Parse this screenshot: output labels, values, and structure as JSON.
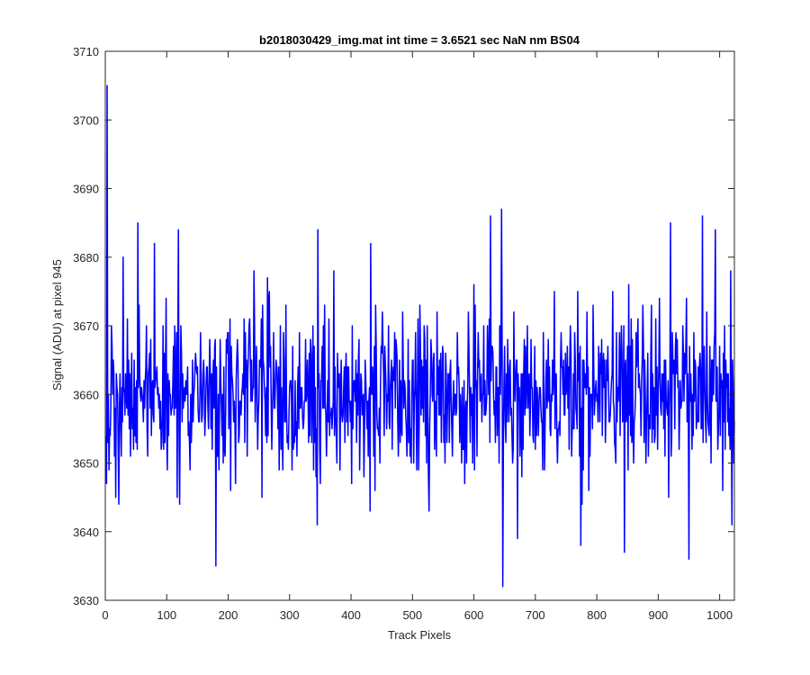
{
  "chart_data": {
    "type": "line",
    "title": "b2018030429_img.mat int time = 3.6521 sec  NaN nm BS04",
    "xlabel": "Track Pixels",
    "ylabel": "Signal (ADU) at pixel 945",
    "xlim": [
      0,
      1024
    ],
    "ylim": [
      3630,
      3710
    ],
    "xticks": [
      0,
      100,
      200,
      300,
      400,
      500,
      600,
      700,
      800,
      900,
      1000
    ],
    "yticks": [
      3630,
      3640,
      3650,
      3660,
      3670,
      3680,
      3690,
      3700,
      3710
    ],
    "grid": false,
    "legend": "none",
    "series": [
      {
        "color": "#0000ff",
        "x_start": 1,
        "x_step": 1,
        "count": 1024,
        "mean_level": 3660,
        "spread": 6,
        "notable_points": [
          {
            "x": 3,
            "y": 3705
          },
          {
            "x": 6,
            "y": 3649
          },
          {
            "x": 10,
            "y": 3670
          },
          {
            "x": 17,
            "y": 3645
          },
          {
            "x": 22,
            "y": 3644
          },
          {
            "x": 29,
            "y": 3680
          },
          {
            "x": 53,
            "y": 3685
          },
          {
            "x": 80,
            "y": 3682
          },
          {
            "x": 119,
            "y": 3684
          },
          {
            "x": 180,
            "y": 3635
          },
          {
            "x": 345,
            "y": 3641
          },
          {
            "x": 346,
            "y": 3684
          },
          {
            "x": 432,
            "y": 3682
          },
          {
            "x": 627,
            "y": 3686
          },
          {
            "x": 645,
            "y": 3687
          },
          {
            "x": 647,
            "y": 3632
          },
          {
            "x": 671,
            "y": 3639
          },
          {
            "x": 774,
            "y": 3638
          },
          {
            "x": 845,
            "y": 3637
          },
          {
            "x": 920,
            "y": 3685
          },
          {
            "x": 950,
            "y": 3636
          },
          {
            "x": 972,
            "y": 3686
          },
          {
            "x": 993,
            "y": 3684
          },
          {
            "x": 1020,
            "y": 3641
          }
        ]
      }
    ]
  }
}
